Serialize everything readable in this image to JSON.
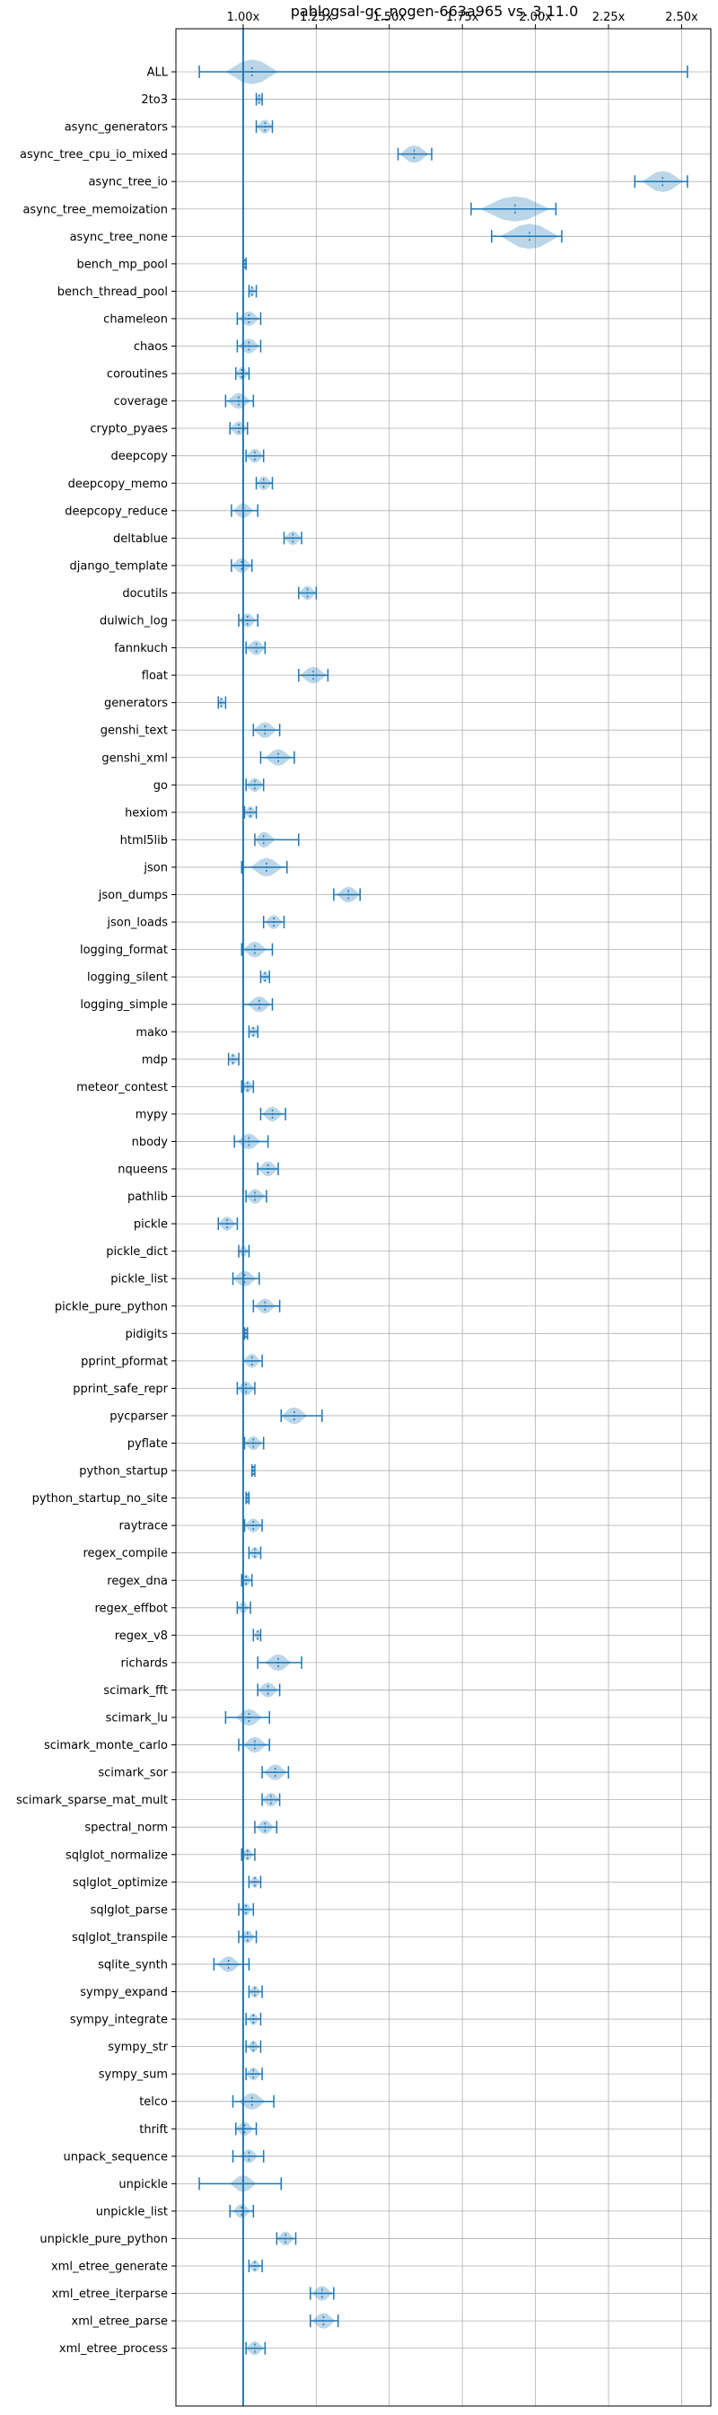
{
  "chart_data": {
    "type": "violin",
    "title": "pablogsal-gc_nogen-663a965 vs. 3.11.0",
    "orientation": "horizontal",
    "x_axis_position": "top",
    "xlim": [
      0.77,
      2.6
    ],
    "x_ticks": [
      1.0,
      1.25,
      1.5,
      1.75,
      2.0,
      2.25,
      2.5
    ],
    "x_tick_labels": [
      "1.00x",
      "1.25x",
      "1.50x",
      "1.75x",
      "2.00x",
      "2.25x",
      "2.50x"
    ],
    "reference_line": 1.0,
    "grid": true,
    "colors": {
      "line": "#1f77b4",
      "fill": "#1f77b4",
      "fill_opacity": 0.3,
      "grid": "#b0b0b0"
    },
    "benchmarks": [
      {
        "name": "ALL",
        "min": 0.85,
        "max": 2.52,
        "median": 1.03,
        "width": 0.09
      },
      {
        "name": "2to3",
        "min": 1.045,
        "max": 1.065,
        "median": 1.055,
        "width": 0.012
      },
      {
        "name": "async_generators",
        "min": 1.045,
        "max": 1.1,
        "median": 1.075,
        "width": 0.03
      },
      {
        "name": "async_tree_cpu_io_mixed",
        "min": 1.53,
        "max": 1.645,
        "median": 1.585,
        "width": 0.05
      },
      {
        "name": "async_tree_io",
        "min": 2.34,
        "max": 2.52,
        "median": 2.435,
        "width": 0.07
      },
      {
        "name": "async_tree_memoization",
        "min": 1.78,
        "max": 2.07,
        "median": 1.93,
        "width": 0.12
      },
      {
        "name": "async_tree_none",
        "min": 1.85,
        "max": 2.09,
        "median": 1.98,
        "width": 0.1
      },
      {
        "name": "bench_mp_pool",
        "min": 1.0,
        "max": 1.01,
        "median": 1.005,
        "width": 0.005
      },
      {
        "name": "bench_thread_pool",
        "min": 1.02,
        "max": 1.045,
        "median": 1.03,
        "width": 0.012
      },
      {
        "name": "chameleon",
        "min": 0.98,
        "max": 1.06,
        "median": 1.02,
        "width": 0.035
      },
      {
        "name": "chaos",
        "min": 0.98,
        "max": 1.06,
        "median": 1.02,
        "width": 0.035
      },
      {
        "name": "coroutines",
        "min": 0.975,
        "max": 1.02,
        "median": 0.995,
        "width": 0.025
      },
      {
        "name": "coverage",
        "min": 0.94,
        "max": 1.035,
        "median": 0.985,
        "width": 0.04
      },
      {
        "name": "crypto_pyaes",
        "min": 0.955,
        "max": 1.015,
        "median": 0.985,
        "width": 0.03
      },
      {
        "name": "deepcopy",
        "min": 1.01,
        "max": 1.07,
        "median": 1.04,
        "width": 0.03
      },
      {
        "name": "deepcopy_memo",
        "min": 1.045,
        "max": 1.1,
        "median": 1.07,
        "width": 0.03
      },
      {
        "name": "deepcopy_reduce",
        "min": 0.96,
        "max": 1.05,
        "median": 1.0,
        "width": 0.035
      },
      {
        "name": "deltablue",
        "min": 1.14,
        "max": 1.2,
        "median": 1.17,
        "width": 0.03
      },
      {
        "name": "django_template",
        "min": 0.96,
        "max": 1.03,
        "median": 0.995,
        "width": 0.035
      },
      {
        "name": "docutils",
        "min": 1.19,
        "max": 1.25,
        "median": 1.22,
        "width": 0.03
      },
      {
        "name": "dulwich_log",
        "min": 0.985,
        "max": 1.05,
        "median": 1.015,
        "width": 0.03
      },
      {
        "name": "fannkuch",
        "min": 1.01,
        "max": 1.075,
        "median": 1.045,
        "width": 0.035
      },
      {
        "name": "float",
        "min": 1.19,
        "max": 1.29,
        "median": 1.24,
        "width": 0.045
      },
      {
        "name": "generators",
        "min": 0.915,
        "max": 0.94,
        "median": 0.925,
        "width": 0.012
      },
      {
        "name": "genshi_text",
        "min": 1.035,
        "max": 1.125,
        "median": 1.075,
        "width": 0.04
      },
      {
        "name": "genshi_xml",
        "min": 1.06,
        "max": 1.175,
        "median": 1.12,
        "width": 0.045
      },
      {
        "name": "go",
        "min": 1.01,
        "max": 1.07,
        "median": 1.04,
        "width": 0.03
      },
      {
        "name": "hexiom",
        "min": 1.005,
        "max": 1.045,
        "median": 1.025,
        "width": 0.02
      },
      {
        "name": "html5lib",
        "min": 1.04,
        "max": 1.19,
        "median": 1.07,
        "width": 0.04
      },
      {
        "name": "json",
        "min": 0.995,
        "max": 1.15,
        "median": 1.08,
        "width": 0.055
      },
      {
        "name": "json_dumps",
        "min": 1.31,
        "max": 1.4,
        "median": 1.36,
        "width": 0.04
      },
      {
        "name": "json_loads",
        "min": 1.07,
        "max": 1.14,
        "median": 1.105,
        "width": 0.03
      },
      {
        "name": "logging_format",
        "min": 0.995,
        "max": 1.1,
        "median": 1.04,
        "width": 0.04
      },
      {
        "name": "logging_silent",
        "min": 1.06,
        "max": 1.09,
        "median": 1.075,
        "width": 0.015
      },
      {
        "name": "logging_simple",
        "min": 1.0,
        "max": 1.1,
        "median": 1.055,
        "width": 0.04
      },
      {
        "name": "mako",
        "min": 1.02,
        "max": 1.05,
        "median": 1.035,
        "width": 0.015
      },
      {
        "name": "mdp",
        "min": 0.95,
        "max": 0.985,
        "median": 0.965,
        "width": 0.018
      },
      {
        "name": "meteor_contest",
        "min": 0.995,
        "max": 1.035,
        "median": 1.015,
        "width": 0.02
      },
      {
        "name": "mypy",
        "min": 1.06,
        "max": 1.145,
        "median": 1.1,
        "width": 0.035
      },
      {
        "name": "nbody",
        "min": 0.97,
        "max": 1.085,
        "median": 1.02,
        "width": 0.04
      },
      {
        "name": "nqueens",
        "min": 1.05,
        "max": 1.12,
        "median": 1.085,
        "width": 0.035
      },
      {
        "name": "pathlib",
        "min": 1.01,
        "max": 1.08,
        "median": 1.04,
        "width": 0.035
      },
      {
        "name": "pickle",
        "min": 0.915,
        "max": 0.98,
        "median": 0.945,
        "width": 0.03
      },
      {
        "name": "pickle_dict",
        "min": 0.985,
        "max": 1.02,
        "median": 1.0,
        "width": 0.018
      },
      {
        "name": "pickle_list",
        "min": 0.965,
        "max": 1.055,
        "median": 1.005,
        "width": 0.04
      },
      {
        "name": "pickle_pure_python",
        "min": 1.035,
        "max": 1.125,
        "median": 1.075,
        "width": 0.035
      },
      {
        "name": "pidigits",
        "min": 1.005,
        "max": 1.015,
        "median": 1.01,
        "width": 0.006
      },
      {
        "name": "pprint_pformat",
        "min": 1.0,
        "max": 1.065,
        "median": 1.03,
        "width": 0.03
      },
      {
        "name": "pprint_safe_repr",
        "min": 0.98,
        "max": 1.04,
        "median": 1.01,
        "width": 0.03
      },
      {
        "name": "pycparser",
        "min": 1.13,
        "max": 1.27,
        "median": 1.175,
        "width": 0.045
      },
      {
        "name": "pyflate",
        "min": 1.005,
        "max": 1.07,
        "median": 1.035,
        "width": 0.03
      },
      {
        "name": "python_startup",
        "min": 1.03,
        "max": 1.04,
        "median": 1.035,
        "width": 0.005
      },
      {
        "name": "python_startup_no_site",
        "min": 1.01,
        "max": 1.02,
        "median": 1.015,
        "width": 0.005
      },
      {
        "name": "raytrace",
        "min": 1.005,
        "max": 1.065,
        "median": 1.035,
        "width": 0.03
      },
      {
        "name": "regex_compile",
        "min": 1.02,
        "max": 1.06,
        "median": 1.04,
        "width": 0.02
      },
      {
        "name": "regex_dna",
        "min": 0.995,
        "max": 1.03,
        "median": 1.01,
        "width": 0.018
      },
      {
        "name": "regex_effbot",
        "min": 0.98,
        "max": 1.025,
        "median": 1.0,
        "width": 0.02
      },
      {
        "name": "regex_v8",
        "min": 1.035,
        "max": 1.06,
        "median": 1.05,
        "width": 0.012
      },
      {
        "name": "richards",
        "min": 1.05,
        "max": 1.2,
        "median": 1.12,
        "width": 0.045
      },
      {
        "name": "scimark_fft",
        "min": 1.05,
        "max": 1.125,
        "median": 1.085,
        "width": 0.035
      },
      {
        "name": "scimark_lu",
        "min": 0.94,
        "max": 1.09,
        "median": 1.02,
        "width": 0.045
      },
      {
        "name": "scimark_monte_carlo",
        "min": 0.985,
        "max": 1.09,
        "median": 1.04,
        "width": 0.04
      },
      {
        "name": "scimark_sor",
        "min": 1.065,
        "max": 1.155,
        "median": 1.11,
        "width": 0.04
      },
      {
        "name": "scimark_sparse_mat_mult",
        "min": 1.065,
        "max": 1.125,
        "median": 1.095,
        "width": 0.03
      },
      {
        "name": "spectral_norm",
        "min": 1.04,
        "max": 1.115,
        "median": 1.075,
        "width": 0.03
      },
      {
        "name": "sqlglot_normalize",
        "min": 0.995,
        "max": 1.04,
        "median": 1.015,
        "width": 0.02
      },
      {
        "name": "sqlglot_optimize",
        "min": 1.02,
        "max": 1.06,
        "median": 1.04,
        "width": 0.018
      },
      {
        "name": "sqlglot_parse",
        "min": 0.985,
        "max": 1.035,
        "median": 1.01,
        "width": 0.02
      },
      {
        "name": "sqlglot_transpile",
        "min": 0.985,
        "max": 1.045,
        "median": 1.015,
        "width": 0.025
      },
      {
        "name": "sqlite_synth",
        "min": 0.9,
        "max": 1.02,
        "median": 0.95,
        "width": 0.04
      },
      {
        "name": "sympy_expand",
        "min": 1.02,
        "max": 1.065,
        "median": 1.04,
        "width": 0.02
      },
      {
        "name": "sympy_integrate",
        "min": 1.01,
        "max": 1.06,
        "median": 1.035,
        "width": 0.02
      },
      {
        "name": "sympy_str",
        "min": 1.01,
        "max": 1.06,
        "median": 1.035,
        "width": 0.02
      },
      {
        "name": "sympy_sum",
        "min": 1.01,
        "max": 1.065,
        "median": 1.035,
        "width": 0.025
      },
      {
        "name": "telco",
        "min": 0.965,
        "max": 1.105,
        "median": 1.03,
        "width": 0.045
      },
      {
        "name": "thrift",
        "min": 0.975,
        "max": 1.045,
        "median": 1.005,
        "width": 0.03
      },
      {
        "name": "unpack_sequence",
        "min": 0.965,
        "max": 1.07,
        "median": 1.02,
        "width": 0.03
      },
      {
        "name": "unpickle",
        "min": 0.85,
        "max": 1.13,
        "median": 1.0,
        "width": 0.045
      },
      {
        "name": "unpickle_list",
        "min": 0.955,
        "max": 1.035,
        "median": 0.995,
        "width": 0.03
      },
      {
        "name": "unpickle_pure_python",
        "min": 1.115,
        "max": 1.18,
        "median": 1.145,
        "width": 0.03
      },
      {
        "name": "xml_etree_generate",
        "min": 1.02,
        "max": 1.065,
        "median": 1.04,
        "width": 0.02
      },
      {
        "name": "xml_etree_iterparse",
        "min": 1.23,
        "max": 1.31,
        "median": 1.27,
        "width": 0.035
      },
      {
        "name": "xml_etree_parse",
        "min": 1.23,
        "max": 1.325,
        "median": 1.275,
        "width": 0.04
      },
      {
        "name": "xml_etree_process",
        "min": 1.01,
        "max": 1.075,
        "median": 1.04,
        "width": 0.03
      }
    ]
  }
}
